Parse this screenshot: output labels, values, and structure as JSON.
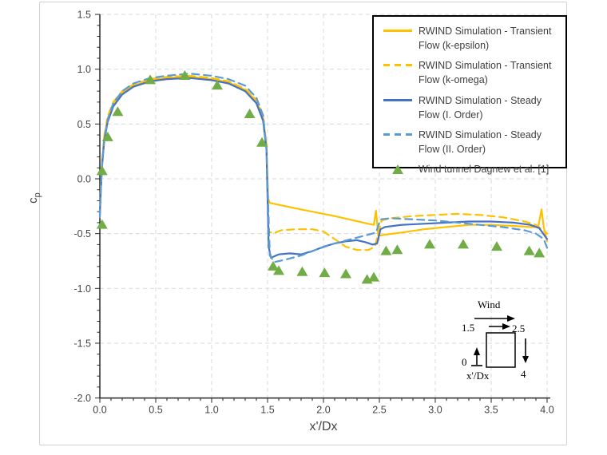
{
  "figure": {
    "type": "excel-style line chart",
    "background": "#ffffff",
    "frame_color": "#d2d2d2"
  },
  "chart_data": {
    "type": "line",
    "title": "",
    "xlabel": "x'/Dx",
    "ylabel_main": "c",
    "ylabel_sub": "p",
    "xlim": [
      0,
      4
    ],
    "ylim": [
      -2.0,
      1.5
    ],
    "grid": "dashed light gray every 0.5 both axes",
    "legend_position": "top-right boxed",
    "x_ticks": {
      "values": [
        0,
        0.5,
        1.0,
        1.5,
        2.0,
        2.5,
        3.0,
        3.5,
        4.0
      ],
      "labels": [
        "0.0",
        "0.5",
        "1.0",
        "1.5",
        "2.0",
        "2.5",
        "3.0",
        "3.5",
        "4.0"
      ],
      "minor_step": 0.1
    },
    "y_ticks": {
      "values": [
        1.5,
        1.0,
        0.5,
        0.0,
        -0.5,
        -1.0,
        -1.5,
        -2.0
      ],
      "labels": [
        "1.5",
        "1.0",
        "0.5",
        "0.0",
        "-0.5",
        "-1.0",
        "-1.5",
        "-2.0"
      ],
      "minor_step": 0.1
    },
    "colors": {
      "orange": "#FFC000",
      "blue_solid": "#4472C4",
      "blue_dashed": "#5B9BD5",
      "green": "#70AD47",
      "grid": "#D9D9D9",
      "axis": "#262626",
      "tick_text": "#444444"
    },
    "series": [
      {
        "name": "RWIND Simulation - Transient Flow (k-epsilon)",
        "color": "#FFC000",
        "dash": false,
        "points": [
          [
            0,
            -0.3
          ],
          [
            0.01,
            -0.05
          ],
          [
            0.02,
            0.15
          ],
          [
            0.04,
            0.38
          ],
          [
            0.07,
            0.55
          ],
          [
            0.12,
            0.68
          ],
          [
            0.2,
            0.79
          ],
          [
            0.3,
            0.85
          ],
          [
            0.45,
            0.9
          ],
          [
            0.6,
            0.92
          ],
          [
            0.8,
            0.93
          ],
          [
            1.0,
            0.91
          ],
          [
            1.15,
            0.88
          ],
          [
            1.3,
            0.81
          ],
          [
            1.4,
            0.71
          ],
          [
            1.46,
            0.56
          ],
          [
            1.49,
            0.32
          ],
          [
            1.505,
            -0.18
          ],
          [
            1.52,
            -0.22
          ],
          [
            1.8,
            -0.28
          ],
          [
            2.1,
            -0.34
          ],
          [
            2.4,
            -0.41
          ],
          [
            2.45,
            -0.42
          ],
          [
            2.47,
            -0.29
          ],
          [
            2.49,
            -0.52
          ],
          [
            2.55,
            -0.51
          ],
          [
            2.7,
            -0.49
          ],
          [
            2.9,
            -0.46
          ],
          [
            3.1,
            -0.44
          ],
          [
            3.3,
            -0.42
          ],
          [
            3.5,
            -0.42
          ],
          [
            3.7,
            -0.43
          ],
          [
            3.85,
            -0.44
          ],
          [
            3.92,
            -0.44
          ],
          [
            3.95,
            -0.28
          ],
          [
            3.97,
            -0.44
          ],
          [
            4.0,
            -0.57
          ]
        ]
      },
      {
        "name": "RWIND Simulation - Transient Flow (k-omega)",
        "color": "#FFC000",
        "dash": true,
        "points": [
          [
            0,
            -0.28
          ],
          [
            0.01,
            -0.03
          ],
          [
            0.02,
            0.17
          ],
          [
            0.04,
            0.4
          ],
          [
            0.07,
            0.57
          ],
          [
            0.12,
            0.7
          ],
          [
            0.2,
            0.8
          ],
          [
            0.3,
            0.86
          ],
          [
            0.45,
            0.91
          ],
          [
            0.6,
            0.93
          ],
          [
            0.8,
            0.94
          ],
          [
            1.0,
            0.92
          ],
          [
            1.15,
            0.89
          ],
          [
            1.3,
            0.82
          ],
          [
            1.4,
            0.72
          ],
          [
            1.46,
            0.58
          ],
          [
            1.49,
            0.3
          ],
          [
            1.51,
            -0.48
          ],
          [
            1.55,
            -0.5
          ],
          [
            1.62,
            -0.47
          ],
          [
            1.75,
            -0.46
          ],
          [
            1.9,
            -0.46
          ],
          [
            2.0,
            -0.48
          ],
          [
            2.1,
            -0.55
          ],
          [
            2.2,
            -0.62
          ],
          [
            2.3,
            -0.65
          ],
          [
            2.4,
            -0.65
          ],
          [
            2.46,
            -0.62
          ],
          [
            2.49,
            -0.5
          ],
          [
            2.52,
            -0.38
          ],
          [
            2.6,
            -0.36
          ],
          [
            2.8,
            -0.34
          ],
          [
            3.0,
            -0.33
          ],
          [
            3.2,
            -0.32
          ],
          [
            3.4,
            -0.33
          ],
          [
            3.6,
            -0.35
          ],
          [
            3.8,
            -0.39
          ],
          [
            3.9,
            -0.42
          ],
          [
            4.0,
            -0.5
          ]
        ]
      },
      {
        "name": "RWIND Simulation - Steady Flow (I. Order)",
        "color": "#4472C4",
        "dash": false,
        "points": [
          [
            0,
            -0.33
          ],
          [
            0.01,
            -0.08
          ],
          [
            0.02,
            0.12
          ],
          [
            0.04,
            0.35
          ],
          [
            0.07,
            0.52
          ],
          [
            0.12,
            0.66
          ],
          [
            0.2,
            0.77
          ],
          [
            0.3,
            0.84
          ],
          [
            0.45,
            0.89
          ],
          [
            0.6,
            0.91
          ],
          [
            0.8,
            0.92
          ],
          [
            1.0,
            0.9
          ],
          [
            1.15,
            0.87
          ],
          [
            1.3,
            0.8
          ],
          [
            1.4,
            0.69
          ],
          [
            1.46,
            0.53
          ],
          [
            1.49,
            0.27
          ],
          [
            1.51,
            -0.62
          ],
          [
            1.53,
            -0.72
          ],
          [
            1.6,
            -0.69
          ],
          [
            1.7,
            -0.68
          ],
          [
            1.8,
            -0.69
          ],
          [
            1.9,
            -0.66
          ],
          [
            2.0,
            -0.62
          ],
          [
            2.1,
            -0.59
          ],
          [
            2.2,
            -0.57
          ],
          [
            2.3,
            -0.56
          ],
          [
            2.38,
            -0.58
          ],
          [
            2.44,
            -0.6
          ],
          [
            2.48,
            -0.59
          ],
          [
            2.51,
            -0.46
          ],
          [
            2.55,
            -0.44
          ],
          [
            2.7,
            -0.42
          ],
          [
            2.9,
            -0.41
          ],
          [
            3.1,
            -0.4
          ],
          [
            3.3,
            -0.39
          ],
          [
            3.5,
            -0.39
          ],
          [
            3.7,
            -0.4
          ],
          [
            3.85,
            -0.42
          ],
          [
            3.93,
            -0.45
          ],
          [
            4.0,
            -0.55
          ]
        ]
      },
      {
        "name": "RWIND Simulation - Steady Flow (II. Order)",
        "color": "#5B9BD5",
        "dash": true,
        "points": [
          [
            0,
            -0.35
          ],
          [
            0.01,
            -0.08
          ],
          [
            0.02,
            0.14
          ],
          [
            0.04,
            0.37
          ],
          [
            0.07,
            0.54
          ],
          [
            0.12,
            0.69
          ],
          [
            0.2,
            0.8
          ],
          [
            0.3,
            0.87
          ],
          [
            0.45,
            0.92
          ],
          [
            0.6,
            0.94
          ],
          [
            0.8,
            0.96
          ],
          [
            1.0,
            0.94
          ],
          [
            1.15,
            0.91
          ],
          [
            1.3,
            0.85
          ],
          [
            1.4,
            0.74
          ],
          [
            1.46,
            0.58
          ],
          [
            1.49,
            0.28
          ],
          [
            1.52,
            -0.7
          ],
          [
            1.56,
            -0.76
          ],
          [
            1.65,
            -0.74
          ],
          [
            1.8,
            -0.7
          ],
          [
            1.95,
            -0.64
          ],
          [
            2.1,
            -0.59
          ],
          [
            2.25,
            -0.55
          ],
          [
            2.4,
            -0.51
          ],
          [
            2.47,
            -0.49
          ],
          [
            2.51,
            -0.37
          ],
          [
            2.6,
            -0.36
          ],
          [
            2.8,
            -0.37
          ],
          [
            3.0,
            -0.38
          ],
          [
            3.2,
            -0.4
          ],
          [
            3.4,
            -0.42
          ],
          [
            3.6,
            -0.44
          ],
          [
            3.8,
            -0.47
          ],
          [
            3.9,
            -0.5
          ],
          [
            3.97,
            -0.55
          ],
          [
            4.0,
            -0.63
          ]
        ]
      }
    ],
    "scatter": {
      "name": "Wind tunnel Dagnew et al. [1]",
      "marker": "triangle-up",
      "color": "#70AD47",
      "points": [
        [
          0.02,
          -0.42
        ],
        [
          0.02,
          0.07
        ],
        [
          0.07,
          0.38
        ],
        [
          0.16,
          0.61
        ],
        [
          0.45,
          0.9
        ],
        [
          0.76,
          0.94
        ],
        [
          1.05,
          0.85
        ],
        [
          1.34,
          0.59
        ],
        [
          1.45,
          0.33
        ],
        [
          1.55,
          -0.8
        ],
        [
          1.6,
          -0.84
        ],
        [
          1.81,
          -0.85
        ],
        [
          2.01,
          -0.86
        ],
        [
          2.2,
          -0.87
        ],
        [
          2.39,
          -0.92
        ],
        [
          2.45,
          -0.9
        ],
        [
          2.56,
          -0.66
        ],
        [
          2.66,
          -0.65
        ],
        [
          2.95,
          -0.6
        ],
        [
          3.25,
          -0.6
        ],
        [
          3.55,
          -0.62
        ],
        [
          3.84,
          -0.66
        ],
        [
          3.93,
          -0.68
        ]
      ]
    }
  },
  "inset_diagram": {
    "wind_label": "Wind",
    "top_left_value": "1.5",
    "top_right_value": "2.5",
    "bottom_left_value": "0",
    "bottom_right_value": "4",
    "axis_label": "x'/Dx"
  }
}
